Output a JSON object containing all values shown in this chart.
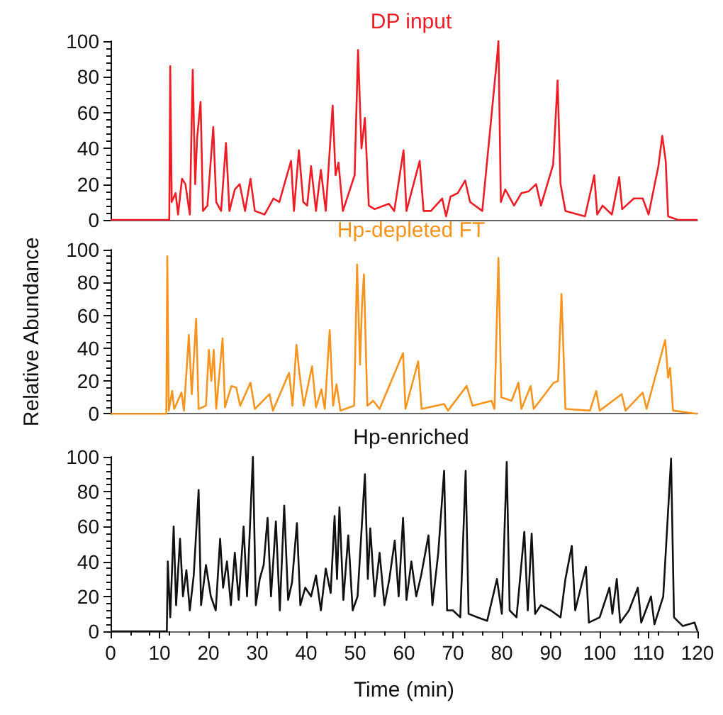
{
  "chart_data": [
    {
      "type": "line",
      "title": "DP input",
      "xlim": [
        0,
        120
      ],
      "xticks": [
        0,
        10,
        20,
        30,
        40,
        50,
        60,
        70,
        80,
        90,
        100,
        110,
        120
      ],
      "ylim": [
        0,
        100
      ],
      "yticks": [
        0,
        20,
        40,
        60,
        80,
        100
      ],
      "tick_labels": "y",
      "series": [
        {
          "color": "#ee1c25",
          "x": [
            0,
            12,
            12.2,
            12.5,
            13.3,
            13.8,
            14.6,
            15.3,
            16.2,
            16.8,
            17.3,
            17.7,
            18.4,
            18.9,
            19.8,
            21,
            21.6,
            22.6,
            23.6,
            24.3,
            25.4,
            26.4,
            27.5,
            28.6,
            29.5,
            31.5,
            33.3,
            34.5,
            36.9,
            37.5,
            38.5,
            39.4,
            40.2,
            41,
            42,
            43,
            44,
            45.4,
            46,
            46.6,
            47.5,
            49.9,
            50.6,
            51.3,
            52,
            52.8,
            54,
            56.9,
            58,
            59.9,
            60.5,
            63.2,
            64,
            65.5,
            67.8,
            68.6,
            69.5,
            71,
            72.5,
            73.5,
            76,
            79,
            79.3,
            79.8,
            80.7,
            82.5,
            84,
            85.5,
            87,
            88,
            90.5,
            91.4,
            92,
            93,
            97,
            98.9,
            99.5,
            100.6,
            102.5,
            104,
            104.6,
            107,
            108.8,
            110,
            112,
            112.8,
            113.5,
            114,
            116,
            120
          ],
          "values": [
            0,
            0,
            86,
            10,
            15,
            3,
            23,
            20,
            3,
            84,
            20,
            46,
            66,
            5,
            8,
            52,
            10,
            5,
            43,
            5,
            17,
            20,
            5,
            23,
            5,
            3,
            12,
            10,
            33,
            5,
            39,
            10,
            8,
            30,
            5,
            28,
            5,
            64,
            25,
            32,
            5,
            25,
            95,
            40,
            57,
            8,
            6,
            9,
            5,
            39,
            5,
            33,
            5,
            5,
            12,
            2,
            13,
            15,
            22,
            10,
            5,
            90,
            100,
            10,
            17,
            8,
            15,
            16,
            20,
            8,
            31,
            78,
            20,
            5,
            2,
            25,
            3,
            8,
            3,
            24,
            6,
            12,
            12,
            3,
            30,
            47,
            33,
            2,
            0,
            0
          ]
        }
      ]
    },
    {
      "type": "line",
      "title": "Hp-depleted FT",
      "ylabel": "Relative Abundance",
      "xlim": [
        0,
        120
      ],
      "xticks": [
        0,
        10,
        20,
        30,
        40,
        50,
        60,
        70,
        80,
        90,
        100,
        110,
        120
      ],
      "ylim": [
        0,
        100
      ],
      "yticks": [
        0,
        20,
        40,
        60,
        80,
        100
      ],
      "tick_labels": "y",
      "series": [
        {
          "color": "#f7941d",
          "x": [
            0,
            11.4,
            11.6,
            11.9,
            12.6,
            13,
            14.5,
            15,
            16,
            16.6,
            17.5,
            18,
            19.5,
            20.1,
            20.6,
            21.1,
            21.6,
            22.9,
            23.4,
            24.7,
            25.7,
            26.5,
            28.6,
            29.5,
            32.5,
            33.2,
            36.5,
            37.2,
            38,
            38.6,
            39.5,
            41.2,
            42,
            43.1,
            43.8,
            44.8,
            45.5,
            46.2,
            47,
            49.8,
            50.4,
            51,
            51.4,
            51.8,
            52.5,
            53.7,
            55,
            59.8,
            60.3,
            62.9,
            63.6,
            68.2,
            69,
            72.8,
            74,
            77.9,
            78.5,
            79.3,
            79.9,
            82,
            83.4,
            84,
            85.9,
            86.5,
            90.6,
            91.5,
            92.2,
            93,
            98,
            99.3,
            100,
            104.5,
            105.3,
            108.8,
            109.6,
            113.4,
            114,
            114.4,
            115,
            120
          ],
          "values": [
            0,
            0,
            96,
            2,
            14,
            3,
            13,
            2,
            48,
            12,
            58,
            3,
            5,
            39,
            20,
            39,
            3,
            46,
            4,
            17,
            16,
            5,
            19,
            3,
            12,
            2,
            25,
            5,
            42,
            25,
            5,
            29,
            4,
            15,
            3,
            51,
            5,
            18,
            2,
            5,
            91,
            30,
            66,
            85,
            5,
            8,
            3,
            37,
            3,
            32,
            3,
            6,
            2,
            17,
            5,
            8,
            3,
            95,
            10,
            8,
            19,
            3,
            17,
            3,
            19,
            20,
            73,
            3,
            2,
            14,
            2,
            12,
            2,
            13,
            3,
            45,
            22,
            28,
            2,
            0
          ]
        }
      ]
    },
    {
      "type": "line",
      "title": "Hp-enriched",
      "xlabel": "Time (min)",
      "xlim": [
        0,
        120
      ],
      "xticks": [
        0,
        10,
        20,
        30,
        40,
        50,
        60,
        70,
        80,
        90,
        100,
        110,
        120
      ],
      "ylim": [
        0,
        100
      ],
      "yticks": [
        0,
        20,
        40,
        60,
        80,
        100
      ],
      "series": [
        {
          "color": "#111111",
          "x": [
            0,
            11.5,
            11.7,
            12.2,
            12.9,
            13.4,
            14.2,
            14.8,
            15.5,
            16.2,
            17,
            18,
            18.5,
            19.5,
            20.5,
            21.5,
            22.4,
            23,
            23.8,
            24.6,
            25.4,
            26.2,
            27.2,
            27.9,
            29.1,
            29.7,
            30.5,
            31.3,
            32.1,
            32.8,
            33.8,
            34.6,
            35.5,
            36.3,
            37.1,
            38.1,
            38.8,
            39.8,
            41,
            42,
            43,
            44,
            45,
            45.8,
            46.3,
            46.8,
            47.6,
            48.6,
            49.5,
            50.5,
            52,
            52.6,
            53.1,
            54,
            55,
            56,
            57,
            58.1,
            58.9,
            59.8,
            60.5,
            61.5,
            62.5,
            63.5,
            65,
            65.8,
            67,
            68.2,
            68.8,
            70,
            71.5,
            72.6,
            73.2,
            75,
            77,
            79,
            80,
            81,
            81.6,
            83,
            84.6,
            85.3,
            86.1,
            86.8,
            88,
            90,
            92,
            93,
            94.3,
            95,
            97.2,
            97.8,
            100,
            102,
            102.6,
            103.5,
            104.2,
            106,
            107.8,
            108.5,
            110.5,
            111.2,
            113,
            114.6,
            115.2,
            117,
            119.4,
            120
          ],
          "values": [
            0,
            0,
            40,
            8,
            60,
            15,
            53,
            20,
            35,
            12,
            32,
            81,
            15,
            38,
            20,
            12,
            53,
            25,
            40,
            15,
            45,
            18,
            60,
            20,
            100,
            15,
            30,
            38,
            65,
            20,
            63,
            12,
            72,
            18,
            28,
            62,
            15,
            25,
            20,
            32,
            12,
            36,
            22,
            66,
            30,
            71,
            18,
            55,
            12,
            20,
            90,
            30,
            59,
            20,
            45,
            15,
            30,
            52,
            20,
            65,
            18,
            40,
            20,
            32,
            55,
            15,
            45,
            92,
            12,
            12,
            8,
            92,
            10,
            8,
            6,
            30,
            10,
            97,
            12,
            8,
            57,
            12,
            56,
            10,
            15,
            12,
            8,
            30,
            49,
            12,
            37,
            5,
            8,
            25,
            10,
            30,
            5,
            12,
            25,
            5,
            20,
            4,
            20,
            99,
            8,
            3,
            5,
            0
          ]
        }
      ]
    }
  ]
}
